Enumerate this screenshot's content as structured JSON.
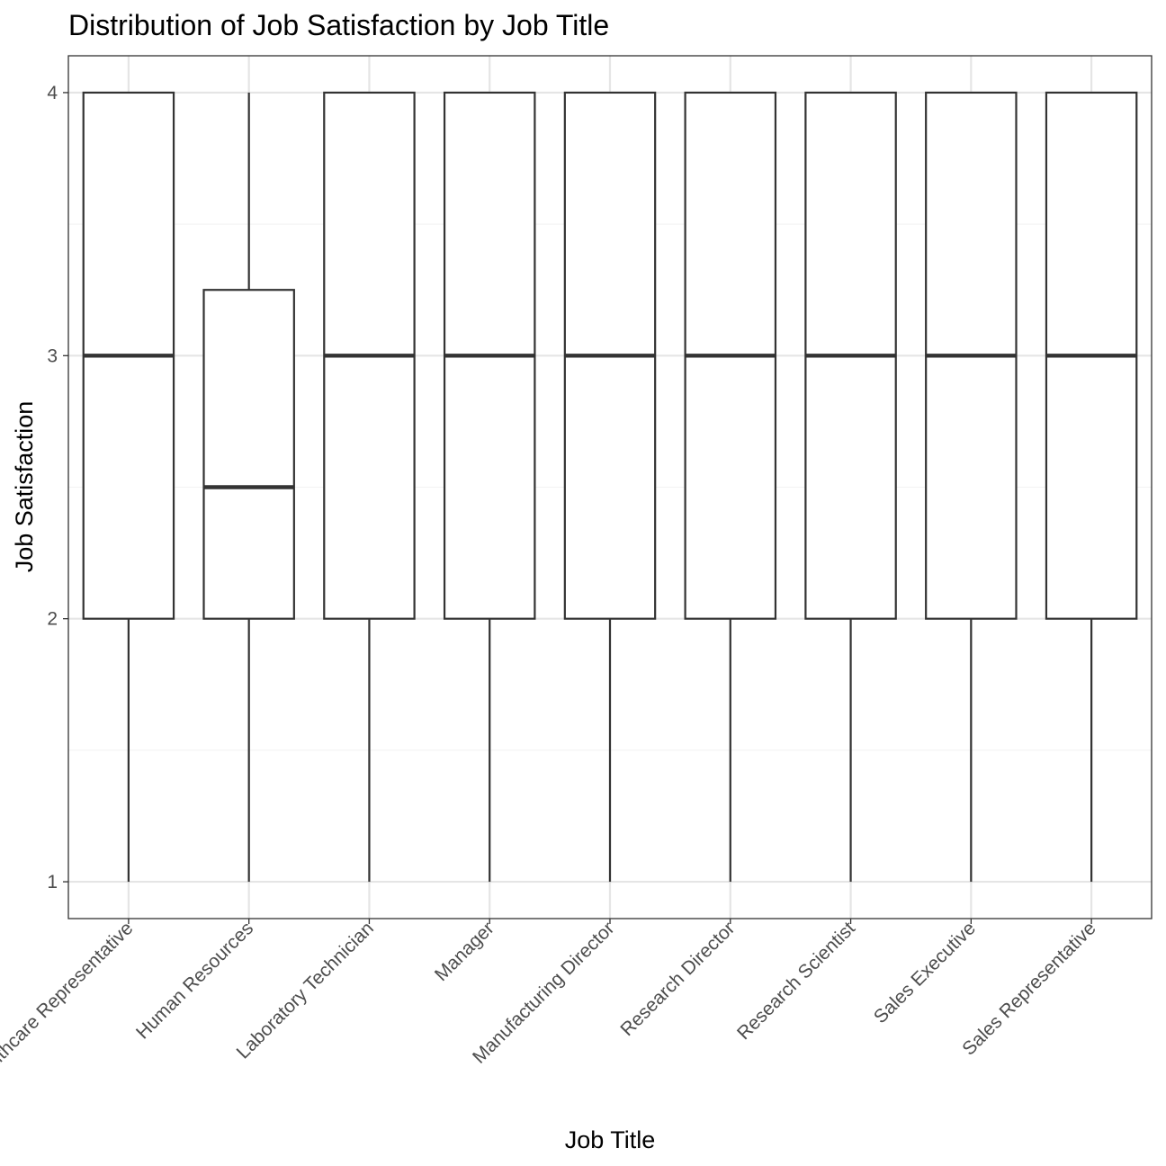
{
  "chart_data": {
    "type": "boxplot",
    "title": "Distribution of Job Satisfaction by Job Title",
    "xlabel": "Job Title",
    "ylabel": "Job Satisfaction",
    "ylim": [
      0.86,
      4.14
    ],
    "yticks": [
      1,
      2,
      3,
      4
    ],
    "grid": true,
    "theme": "black-and-white",
    "colors": {
      "box_stroke": "#333333",
      "box_fill": "#ffffff",
      "grid_major": "#e5e5e5",
      "grid_minor": "#f2f2f2",
      "panel_border": "#333333",
      "tick_label": "#4d4d4d",
      "text": "#000000"
    },
    "categories": [
      "Healthcare Representative",
      "Human Resources",
      "Laboratory Technician",
      "Manager",
      "Manufacturing Director",
      "Research Director",
      "Research Scientist",
      "Sales Executive",
      "Sales Representative"
    ],
    "boxes": [
      {
        "category": "Healthcare Representative",
        "min": 1,
        "q1": 2,
        "median": 3,
        "q3": 4,
        "max": 4
      },
      {
        "category": "Human Resources",
        "min": 1,
        "q1": 2,
        "median": 2.5,
        "q3": 3.25,
        "max": 4
      },
      {
        "category": "Laboratory Technician",
        "min": 1,
        "q1": 2,
        "median": 3,
        "q3": 4,
        "max": 4
      },
      {
        "category": "Manager",
        "min": 1,
        "q1": 2,
        "median": 3,
        "q3": 4,
        "max": 4
      },
      {
        "category": "Manufacturing Director",
        "min": 1,
        "q1": 2,
        "median": 3,
        "q3": 4,
        "max": 4
      },
      {
        "category": "Research Director",
        "min": 1,
        "q1": 2,
        "median": 3,
        "q3": 4,
        "max": 4
      },
      {
        "category": "Research Scientist",
        "min": 1,
        "q1": 2,
        "median": 3,
        "q3": 4,
        "max": 4
      },
      {
        "category": "Sales Executive",
        "min": 1,
        "q1": 2,
        "median": 3,
        "q3": 4,
        "max": 4
      },
      {
        "category": "Sales Representative",
        "min": 1,
        "q1": 2,
        "median": 3,
        "q3": 4,
        "max": 4
      }
    ]
  }
}
